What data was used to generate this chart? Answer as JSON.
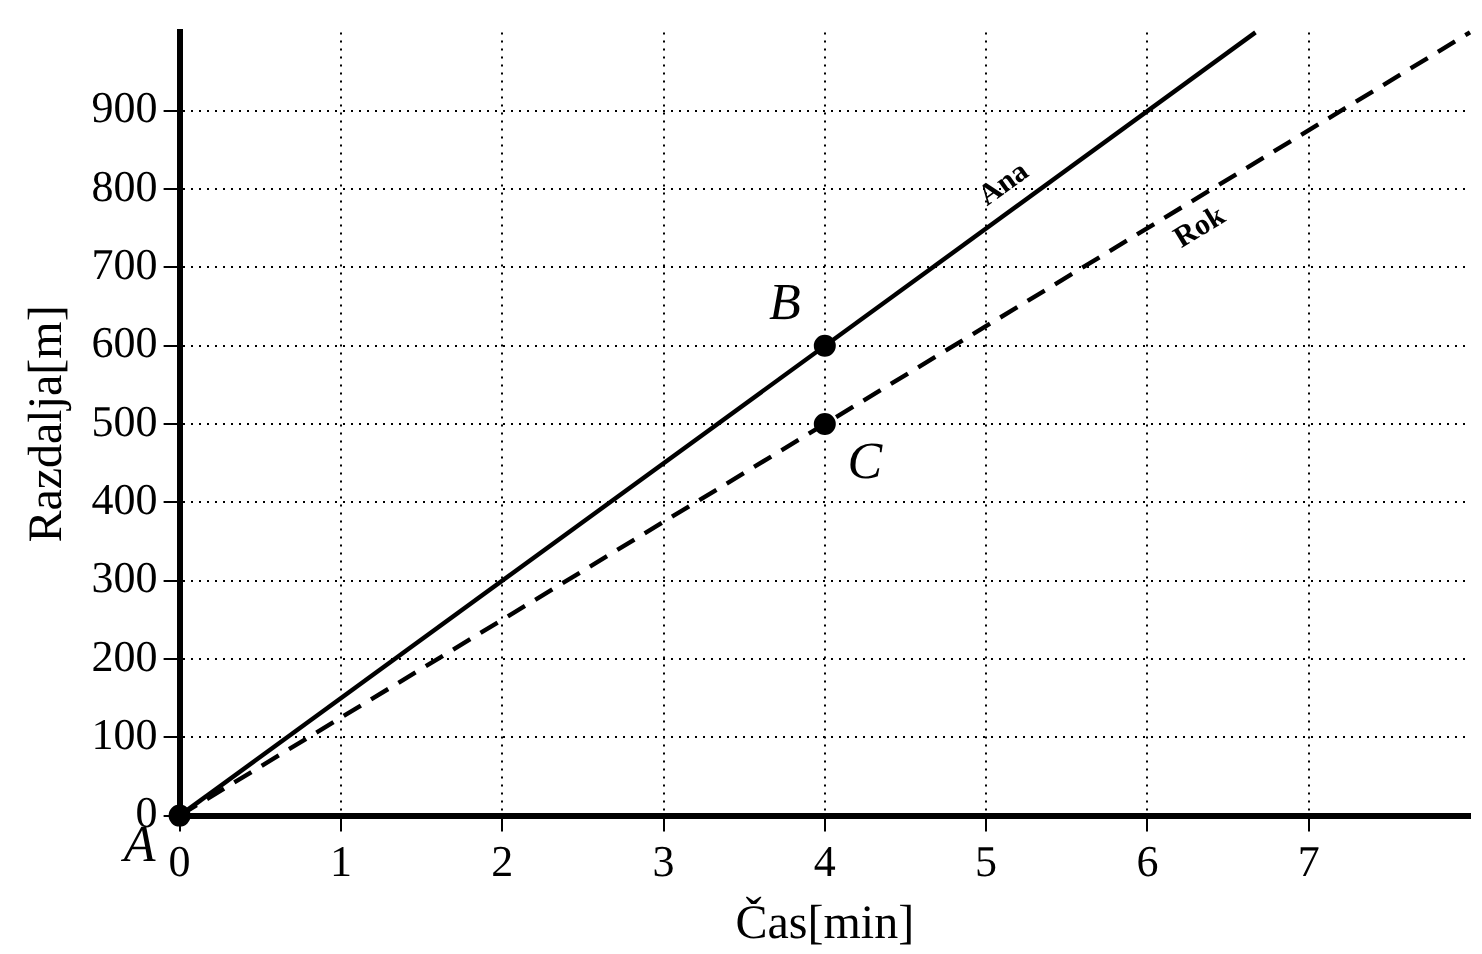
{
  "chart_data": {
    "type": "line",
    "xlabel": "Čas[min]",
    "ylabel": "Razdalja[m]",
    "xlim": [
      0,
      8
    ],
    "ylim": [
      0,
      1000
    ],
    "xticks": [
      0,
      1,
      2,
      3,
      4,
      5,
      6,
      7
    ],
    "yticks": [
      0,
      100,
      200,
      300,
      400,
      500,
      600,
      700,
      800,
      900
    ],
    "grid": true,
    "series": [
      {
        "name": "Ana",
        "type": "line",
        "color": "#000000",
        "line_style": "solid",
        "marker": "none",
        "x": [
          0,
          6.67
        ],
        "values": [
          0,
          1000
        ]
      },
      {
        "name": "Rok",
        "type": "line",
        "color": "#000000",
        "line_style": "dashed",
        "marker": "none",
        "x": [
          0,
          8
        ],
        "values": [
          0,
          1000
        ]
      },
      {
        "type": "scatter",
        "color": "#000000",
        "marker": "circle",
        "x": [
          0,
          4,
          4
        ],
        "values": [
          0,
          600,
          500
        ]
      }
    ],
    "annotations": [
      "A",
      {
        "text": "B",
        "x": 4,
        "y": 600
      },
      {
        "text": "C",
        "x": 4,
        "y": 500
      }
    ]
  }
}
